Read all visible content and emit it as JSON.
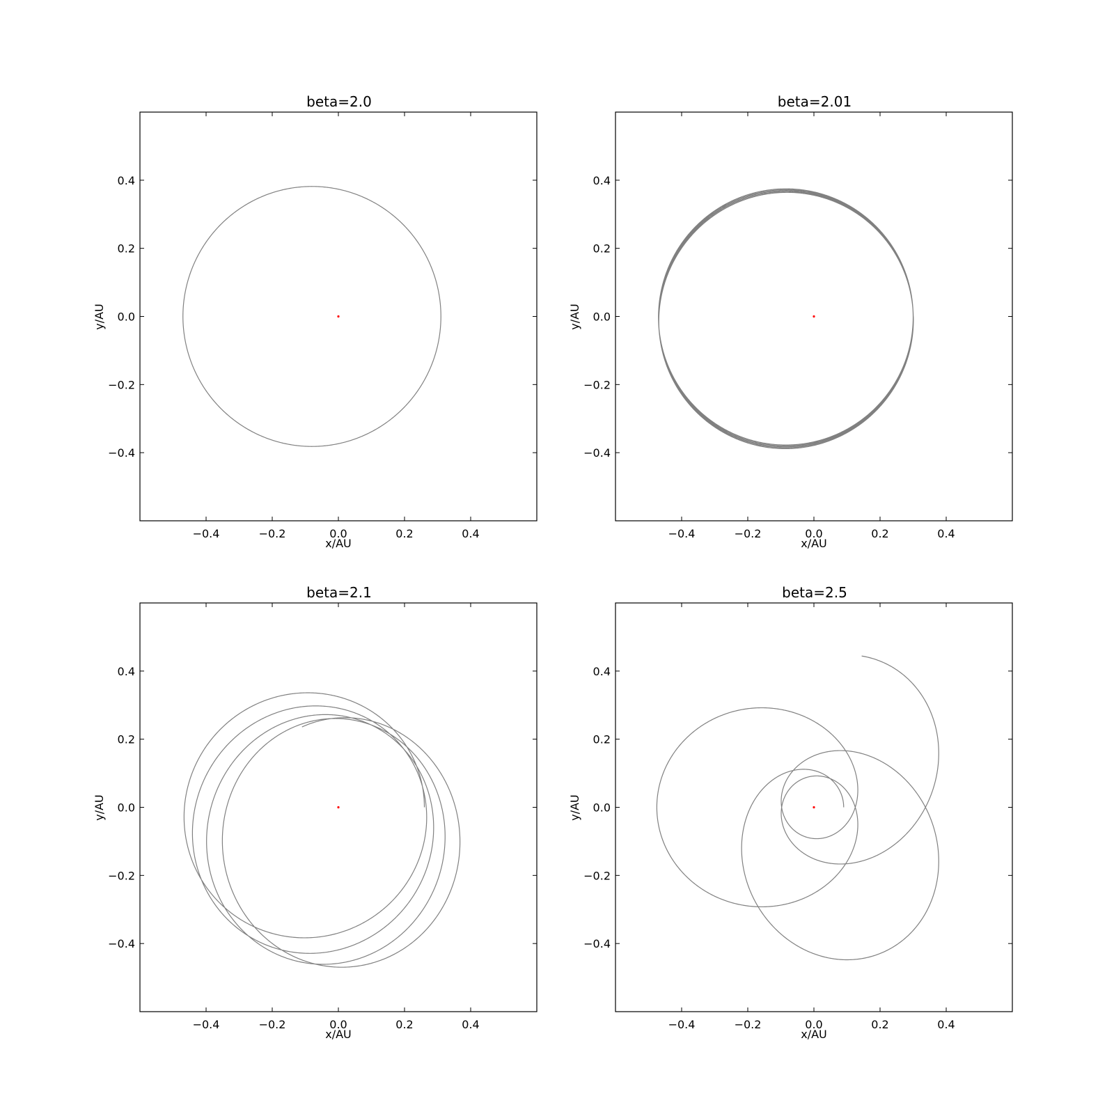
{
  "chart_data": [
    {
      "type": "line",
      "title": "beta=2.0",
      "xlabel": "x/AU",
      "ylabel": "y/AU",
      "xlim": [
        -0.6,
        0.6
      ],
      "ylim": [
        -0.6,
        0.6
      ],
      "xticks": [
        -0.4,
        -0.2,
        0.0,
        0.2,
        0.4
      ],
      "yticks": [
        -0.4,
        -0.2,
        0.0,
        0.2,
        0.4
      ],
      "grid": false,
      "orbit": {
        "beta": 2.0,
        "r_max": 0.47,
        "r_min": 0.31,
        "start_angle_deg": 0,
        "end_angle_deg": 360,
        "precession": 1.0
      },
      "sun": {
        "x": 0.0,
        "y": 0.0,
        "color": "#ff0000"
      },
      "orbit_color": "#808080",
      "orbit_width": 1.2
    },
    {
      "type": "line",
      "title": "beta=2.01",
      "xlabel": "x/AU",
      "ylabel": "y/AU",
      "xlim": [
        -0.6,
        0.6
      ],
      "ylim": [
        -0.6,
        0.6
      ],
      "xticks": [
        -0.4,
        -0.2,
        0.0,
        0.2,
        0.4
      ],
      "yticks": [
        -0.4,
        -0.2,
        0.0,
        0.2,
        0.4
      ],
      "grid": false,
      "orbit": {
        "beta": 2.01,
        "r_max": 0.47,
        "r_min": 0.3,
        "start_angle_deg": 0,
        "end_angle_deg": 1800,
        "precession": 0.995
      },
      "sun": {
        "x": 0.0,
        "y": 0.0,
        "color": "#ff0000"
      },
      "orbit_color": "#808080",
      "orbit_width": 1.2
    },
    {
      "type": "line",
      "title": "beta=2.1",
      "xlabel": "x/AU",
      "ylabel": "y/AU",
      "xlim": [
        -0.6,
        0.6
      ],
      "ylim": [
        -0.6,
        0.6
      ],
      "xticks": [
        -0.4,
        -0.2,
        0.0,
        0.2,
        0.4
      ],
      "yticks": [
        -0.4,
        -0.2,
        0.0,
        0.2,
        0.4
      ],
      "grid": false,
      "orbit": {
        "beta": 2.1,
        "r_max": 0.47,
        "r_min": 0.26,
        "start_angle_deg": 0,
        "end_angle_deg": 1555,
        "precession": 0.93
      },
      "sun": {
        "x": 0.0,
        "y": 0.0,
        "color": "#ff0000"
      },
      "orbit_color": "#808080",
      "orbit_width": 1.2
    },
    {
      "type": "line",
      "title": "beta=2.5",
      "xlabel": "x/AU",
      "ylabel": "y/AU",
      "xlim": [
        -0.6,
        0.6
      ],
      "ylim": [
        -0.6,
        0.6
      ],
      "xticks": [
        -0.4,
        -0.2,
        0.0,
        0.2,
        0.4
      ],
      "yticks": [
        -0.4,
        -0.2,
        0.0,
        0.2,
        0.4
      ],
      "grid": false,
      "orbit": {
        "beta": 2.5,
        "r_max": 0.475,
        "r_min": 0.09,
        "start_angle_deg": 0,
        "end_angle_deg": 1512,
        "precession": 0.6
      },
      "sun": {
        "x": 0.0,
        "y": 0.0,
        "color": "#ff0000"
      },
      "orbit_color": "#808080",
      "orbit_width": 1.2
    }
  ]
}
